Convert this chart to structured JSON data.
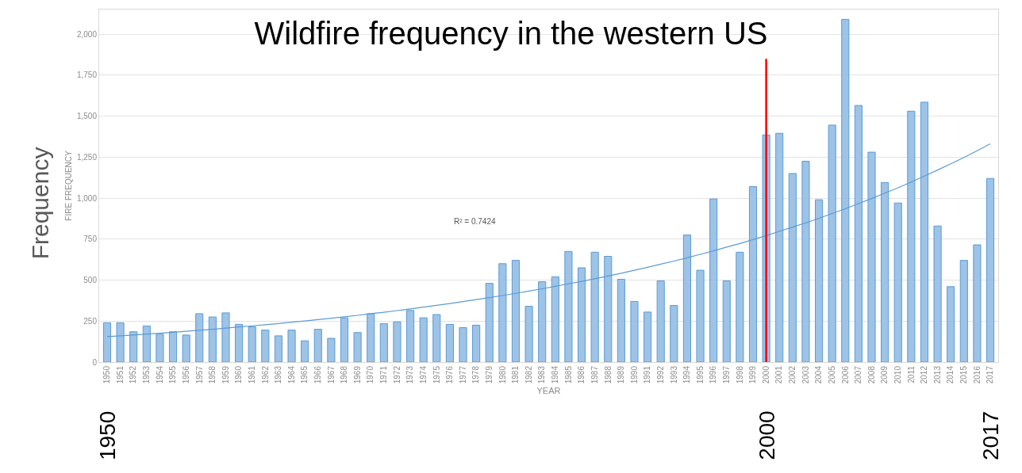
{
  "chart_data": {
    "type": "bar",
    "title": "Wildfire frequency in the western US",
    "xlabel": "YEAR",
    "ylabel": "FIRE FREQUENCY",
    "categories": [
      "1950",
      "1951",
      "1952",
      "1953",
      "1954",
      "1955",
      "1956",
      "1957",
      "1958",
      "1959",
      "1960",
      "1961",
      "1962",
      "1963",
      "1964",
      "1965",
      "1966",
      "1967",
      "1968",
      "1969",
      "1970",
      "1971",
      "1972",
      "1973",
      "1974",
      "1975",
      "1976",
      "1977",
      "1978",
      "1979",
      "1980",
      "1981",
      "1982",
      "1983",
      "1984",
      "1985",
      "1986",
      "1987",
      "1988",
      "1989",
      "1990",
      "1991",
      "1992",
      "1993",
      "1994",
      "1995",
      "1996",
      "1997",
      "1998",
      "1999",
      "2000",
      "2001",
      "2002",
      "2003",
      "2004",
      "2005",
      "2006",
      "2007",
      "2008",
      "2009",
      "2010",
      "2011",
      "2012",
      "2013",
      "2014",
      "2015",
      "2016",
      "2017"
    ],
    "series": [
      {
        "color": "#9dc3e6",
        "values": [
          240,
          240,
          185,
          220,
          170,
          185,
          165,
          295,
          275,
          300,
          230,
          215,
          195,
          160,
          195,
          130,
          200,
          145,
          270,
          180,
          295,
          235,
          245,
          315,
          270,
          290,
          230,
          210,
          225,
          480,
          600,
          620,
          340,
          490,
          520,
          675,
          575,
          670,
          645,
          505,
          370,
          305,
          495,
          345,
          775,
          560,
          995,
          495,
          670,
          1070,
          1385,
          1395,
          1150,
          1225,
          990,
          1445,
          2090,
          1565,
          1280,
          1095,
          970,
          1530,
          1585,
          830,
          460,
          620,
          715,
          1120
        ]
      },
      {
        "type": "line",
        "color": "#5b9bd5",
        "values": [
          155,
          160,
          165,
          171,
          176,
          182,
          188,
          194,
          200,
          207,
          214,
          221,
          228,
          235,
          243,
          251,
          259,
          268,
          276,
          285,
          295,
          304,
          314,
          324,
          335,
          346,
          357,
          369,
          381,
          393,
          406,
          419,
          433,
          447,
          462,
          477,
          492,
          508,
          525,
          542,
          560,
          578,
          597,
          616,
          636,
          657,
          678,
          701,
          723,
          747,
          771,
          797,
          823,
          849,
          877,
          906,
          935,
          966,
          997,
          1030,
          1063,
          1098,
          1134,
          1171,
          1209,
          1248,
          1289,
          1331
        ]
      }
    ],
    "ylim": [
      0,
      2150
    ],
    "yticks": [
      0,
      {
        "value": 250,
        "label": "250"
      },
      {
        "value": 500,
        "label": "500"
      },
      {
        "value": 750,
        "label": "750"
      },
      {
        "value": 1000,
        "label": "1,000"
      },
      {
        "value": 1250,
        "label": "1,250"
      },
      {
        "value": 1500,
        "label": "1,500"
      },
      {
        "value": 1750,
        "label": "1,750"
      },
      {
        "value": 2000,
        "label": "2,000"
      }
    ],
    "grid": "y",
    "marker": "none",
    "line_style": "solid",
    "ref_lines": [
      {
        "axis": "x",
        "value": "2000",
        "color": "#ff0000",
        "line_style": "solid"
      }
    ],
    "annotations": [
      "R² = 0.7424",
      "Frequency",
      "1950",
      "2000",
      "2017"
    ]
  }
}
